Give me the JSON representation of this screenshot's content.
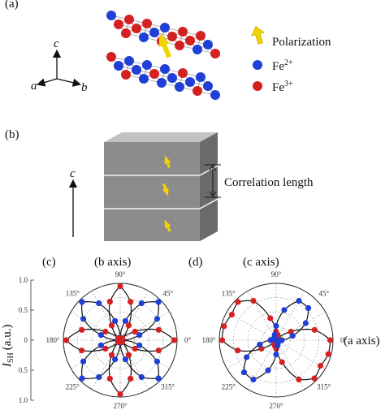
{
  "panel_a": {
    "label": "(a)",
    "axes": {
      "c": "c",
      "a": "a",
      "b": "b"
    },
    "legend": {
      "polarization": "Polarization",
      "fe2_base": "Fe",
      "fe2_sup": "2+",
      "fe3_base": "Fe",
      "fe3_sup": "3+"
    },
    "colors": {
      "fe2": "#1f3fd6",
      "fe3": "#d42020",
      "polarization": "#f2d400"
    }
  },
  "panel_b": {
    "label": "(b)",
    "axis": "c",
    "annotation": "Correlation length",
    "colors": {
      "block": "#8c8c8c",
      "arrow": "#f2d400"
    }
  },
  "panel_c": {
    "label": "(c)",
    "title": "(b axis)",
    "ylabel_base": "I",
    "ylabel_sub": "SH",
    "ylabel_unit": "(a.u.)",
    "y_ticks": [
      "1.0",
      "0.5",
      "0",
      "0.5",
      "1.0"
    ],
    "angle_labels": [
      "0°",
      "45°",
      "90°",
      "135°",
      "180°",
      "225°",
      "270°",
      "315°"
    ]
  },
  "panel_d": {
    "label": "(d)",
    "title": "(c axis)",
    "side_label": "(a axis)",
    "angle_labels": [
      "0°",
      "45°",
      "90°",
      "135°",
      "180°",
      "225°",
      "270°",
      "315°"
    ]
  },
  "chart_data": [
    {
      "type": "polar",
      "title": "(b axis)",
      "ylabel": "I_SH (a.u.)",
      "rlim": [
        0,
        1
      ],
      "grid": true,
      "series": [
        {
          "color": "#1f3fd6",
          "marker": "circle",
          "angles_deg": [
            0,
            15,
            30,
            45,
            60,
            75,
            90,
            105,
            120,
            135,
            150,
            165,
            180,
            195,
            210,
            225,
            240,
            255,
            270,
            285,
            300,
            315,
            330,
            345
          ],
          "r": [
            0.05,
            0.35,
            0.75,
            0.95,
            0.75,
            0.35,
            0.05,
            0.35,
            0.75,
            0.95,
            0.75,
            0.35,
            0.05,
            0.35,
            0.75,
            0.95,
            0.75,
            0.35,
            0.05,
            0.35,
            0.75,
            0.95,
            0.75,
            0.35
          ]
        },
        {
          "color": "#d42020",
          "marker": "circle",
          "angles_deg": [
            0,
            15,
            30,
            45,
            60,
            75,
            90,
            105,
            120,
            135,
            150,
            165,
            180,
            195,
            210,
            225,
            240,
            255,
            270,
            285,
            300,
            315,
            330,
            345
          ],
          "r": [
            0.95,
            0.7,
            0.3,
            0.05,
            0.3,
            0.7,
            0.95,
            0.7,
            0.3,
            0.05,
            0.3,
            0.7,
            0.95,
            0.7,
            0.3,
            0.05,
            0.3,
            0.7,
            0.95,
            0.7,
            0.3,
            0.05,
            0.3,
            0.7
          ]
        }
      ]
    },
    {
      "type": "polar",
      "title": "(c axis)",
      "rlim": [
        0,
        1
      ],
      "grid": true,
      "series": [
        {
          "color": "#d42020",
          "marker": "circle",
          "angles_deg": [
            0,
            15,
            30,
            45,
            60,
            75,
            90,
            105,
            120,
            135,
            150,
            165,
            180,
            195,
            210,
            225,
            240,
            255,
            270,
            285,
            300,
            315,
            330,
            345
          ],
          "r": [
            0.95,
            0.7,
            0.3,
            0.05,
            0.05,
            0.1,
            0.15,
            0.4,
            0.8,
            0.95,
            0.9,
            0.95,
            0.95,
            0.7,
            0.3,
            0.05,
            0.05,
            0.1,
            0.15,
            0.4,
            0.8,
            0.95,
            0.9,
            0.95
          ]
        },
        {
          "color": "#1f3fd6",
          "marker": "circle",
          "angles_deg": [
            0,
            15,
            30,
            45,
            60,
            75,
            90,
            105,
            120,
            135,
            150,
            165,
            180,
            195,
            210,
            225,
            240,
            255,
            270,
            285,
            300,
            315,
            330,
            345
          ],
          "r": [
            0.1,
            0.3,
            0.6,
            0.8,
            0.8,
            0.55,
            0.25,
            0.1,
            0.05,
            0.05,
            0.05,
            0.05,
            0.1,
            0.3,
            0.6,
            0.8,
            0.8,
            0.55,
            0.25,
            0.1,
            0.05,
            0.05,
            0.05,
            0.05
          ]
        }
      ]
    }
  ]
}
